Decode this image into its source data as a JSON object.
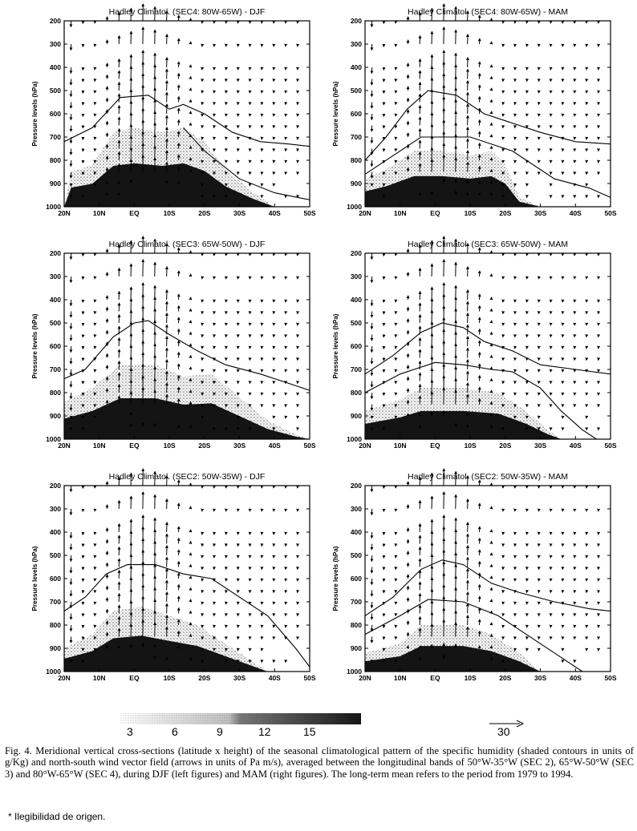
{
  "chart_data": [
    {
      "type": "vector-field",
      "title": "Hadley Climatol. (SEC4: 80W-65W) - DJF",
      "ylabel": "Pressure levels (hPa)",
      "x_ticks": [
        "20N",
        "10N",
        "EQ",
        "10S",
        "20S",
        "30S",
        "40S",
        "50S"
      ],
      "y_ticks": [
        200,
        300,
        400,
        500,
        600,
        700,
        800,
        900,
        1000
      ],
      "xlim": [
        20,
        -50
      ],
      "ylim": [
        1000,
        200
      ],
      "humidity_top": [
        {
          "lat": 20,
          "p": 1000
        },
        {
          "lat": 18,
          "p": 850
        },
        {
          "lat": 12,
          "p": 820
        },
        {
          "lat": 6,
          "p": 680
        },
        {
          "lat": 0,
          "p": 660
        },
        {
          "lat": -8,
          "p": 680
        },
        {
          "lat": -14,
          "p": 660
        },
        {
          "lat": -20,
          "p": 720
        },
        {
          "lat": -26,
          "p": 840
        },
        {
          "lat": -34,
          "p": 940
        },
        {
          "lat": -40,
          "p": 1000
        }
      ],
      "contour_lines": [
        [
          {
            "lat": 20,
            "p": 720
          },
          {
            "lat": 12,
            "p": 660
          },
          {
            "lat": 4,
            "p": 530
          },
          {
            "lat": -4,
            "p": 520
          },
          {
            "lat": -10,
            "p": 580
          },
          {
            "lat": -14,
            "p": 560
          },
          {
            "lat": -20,
            "p": 600
          },
          {
            "lat": -28,
            "p": 680
          },
          {
            "lat": -36,
            "p": 720
          },
          {
            "lat": -44,
            "p": 730
          },
          {
            "lat": -50,
            "p": 740
          }
        ],
        [
          {
            "lat": -14,
            "p": 660
          },
          {
            "lat": -20,
            "p": 760
          },
          {
            "lat": -30,
            "p": 880
          },
          {
            "lat": -40,
            "p": 940
          },
          {
            "lat": -50,
            "p": 970
          }
        ]
      ]
    },
    {
      "type": "vector-field",
      "title": "Hadley Climatol. (SEC4: 80W-65W) - MAM",
      "ylabel": "Pressure levels (hPa)",
      "x_ticks": [
        "20N",
        "10N",
        "EQ",
        "10S",
        "20S",
        "30S",
        "40S",
        "50S"
      ],
      "y_ticks": [
        200,
        300,
        400,
        500,
        600,
        700,
        800,
        900,
        1000
      ],
      "xlim": [
        20,
        -50
      ],
      "ylim": [
        1000,
        200
      ],
      "humidity_top": [
        {
          "lat": 20,
          "p": 880
        },
        {
          "lat": 14,
          "p": 840
        },
        {
          "lat": 6,
          "p": 760
        },
        {
          "lat": -2,
          "p": 760
        },
        {
          "lat": -10,
          "p": 780
        },
        {
          "lat": -16,
          "p": 760
        },
        {
          "lat": -20,
          "p": 820
        },
        {
          "lat": -24,
          "p": 960
        },
        {
          "lat": -30,
          "p": 1000
        }
      ],
      "contour_lines": [
        [
          {
            "lat": 20,
            "p": 800
          },
          {
            "lat": 14,
            "p": 700
          },
          {
            "lat": 8,
            "p": 580
          },
          {
            "lat": 2,
            "p": 500
          },
          {
            "lat": -6,
            "p": 520
          },
          {
            "lat": -14,
            "p": 600
          },
          {
            "lat": -22,
            "p": 640
          },
          {
            "lat": -30,
            "p": 680
          },
          {
            "lat": -40,
            "p": 720
          },
          {
            "lat": -50,
            "p": 730
          }
        ],
        [
          {
            "lat": 20,
            "p": 860
          },
          {
            "lat": 12,
            "p": 780
          },
          {
            "lat": 4,
            "p": 700
          },
          {
            "lat": -10,
            "p": 700
          },
          {
            "lat": -22,
            "p": 760
          },
          {
            "lat": -34,
            "p": 880
          },
          {
            "lat": -44,
            "p": 920
          },
          {
            "lat": -50,
            "p": 960
          }
        ]
      ]
    },
    {
      "type": "vector-field",
      "title": "Hadley Climatol. (SEC3: 65W-50W) - DJF",
      "ylabel": "Pressure levels (hPa)",
      "x_ticks": [
        "20N",
        "10N",
        "EQ",
        "10S",
        "20S",
        "30S",
        "40S",
        "50S"
      ],
      "y_ticks": [
        200,
        300,
        400,
        500,
        600,
        700,
        800,
        900,
        1000
      ],
      "xlim": [
        20,
        -50
      ],
      "ylim": [
        1000,
        200
      ],
      "humidity_top": [
        {
          "lat": 20,
          "p": 840
        },
        {
          "lat": 12,
          "p": 780
        },
        {
          "lat": 4,
          "p": 680
        },
        {
          "lat": -6,
          "p": 680
        },
        {
          "lat": -14,
          "p": 730
        },
        {
          "lat": -22,
          "p": 720
        },
        {
          "lat": -30,
          "p": 820
        },
        {
          "lat": -38,
          "p": 920
        },
        {
          "lat": -46,
          "p": 980
        },
        {
          "lat": -50,
          "p": 1000
        }
      ],
      "contour_lines": [
        [
          {
            "lat": 20,
            "p": 740
          },
          {
            "lat": 14,
            "p": 700
          },
          {
            "lat": 6,
            "p": 560
          },
          {
            "lat": 0,
            "p": 500
          },
          {
            "lat": -4,
            "p": 490
          },
          {
            "lat": -10,
            "p": 550
          },
          {
            "lat": -18,
            "p": 620
          },
          {
            "lat": -26,
            "p": 680
          },
          {
            "lat": -36,
            "p": 720
          },
          {
            "lat": -44,
            "p": 760
          },
          {
            "lat": -50,
            "p": 790
          }
        ]
      ]
    },
    {
      "type": "vector-field",
      "title": "Hadley Climatol. (SEC3: 65W-50W) - MAM",
      "ylabel": "Pressure levels (hPa)",
      "x_ticks": [
        "20N",
        "10N",
        "EQ",
        "10S",
        "20S",
        "30S",
        "40S",
        "50S"
      ],
      "y_ticks": [
        200,
        300,
        400,
        500,
        600,
        700,
        800,
        900,
        1000
      ],
      "xlim": [
        20,
        -50
      ],
      "ylim": [
        1000,
        200
      ],
      "humidity_top": [
        {
          "lat": 20,
          "p": 880
        },
        {
          "lat": 10,
          "p": 830
        },
        {
          "lat": 4,
          "p": 780
        },
        {
          "lat": -8,
          "p": 780
        },
        {
          "lat": -18,
          "p": 800
        },
        {
          "lat": -26,
          "p": 880
        },
        {
          "lat": -32,
          "p": 960
        },
        {
          "lat": -36,
          "p": 1000
        }
      ],
      "contour_lines": [
        [
          {
            "lat": 20,
            "p": 720
          },
          {
            "lat": 12,
            "p": 640
          },
          {
            "lat": 4,
            "p": 540
          },
          {
            "lat": -2,
            "p": 500
          },
          {
            "lat": -8,
            "p": 520
          },
          {
            "lat": -14,
            "p": 580
          },
          {
            "lat": -22,
            "p": 620
          },
          {
            "lat": -30,
            "p": 680
          },
          {
            "lat": -40,
            "p": 700
          },
          {
            "lat": -50,
            "p": 720
          }
        ],
        [
          {
            "lat": 20,
            "p": 800
          },
          {
            "lat": 10,
            "p": 720
          },
          {
            "lat": 0,
            "p": 670
          },
          {
            "lat": -8,
            "p": 680
          },
          {
            "lat": -16,
            "p": 700
          },
          {
            "lat": -22,
            "p": 710
          },
          {
            "lat": -30,
            "p": 780
          },
          {
            "lat": -36,
            "p": 880
          },
          {
            "lat": -42,
            "p": 960
          },
          {
            "lat": -46,
            "p": 1000
          }
        ]
      ]
    },
    {
      "type": "vector-field",
      "title": "Hadley Climatol. (SEC2: 50W-35W) - DJF",
      "ylabel": "Pressure levels (hPa)",
      "x_ticks": [
        "20N",
        "10N",
        "EQ",
        "10S",
        "20S",
        "30S",
        "40S",
        "50S"
      ],
      "y_ticks": [
        200,
        300,
        400,
        500,
        600,
        700,
        800,
        900,
        1000
      ],
      "xlim": [
        20,
        -50
      ],
      "ylim": [
        1000,
        200
      ],
      "humidity_top": [
        {
          "lat": 20,
          "p": 900
        },
        {
          "lat": 12,
          "p": 840
        },
        {
          "lat": 6,
          "p": 740
        },
        {
          "lat": -2,
          "p": 720
        },
        {
          "lat": -10,
          "p": 760
        },
        {
          "lat": -18,
          "p": 800
        },
        {
          "lat": -26,
          "p": 880
        },
        {
          "lat": -34,
          "p": 960
        },
        {
          "lat": -38,
          "p": 1000
        }
      ],
      "contour_lines": [
        [
          {
            "lat": 20,
            "p": 740
          },
          {
            "lat": 14,
            "p": 680
          },
          {
            "lat": 8,
            "p": 580
          },
          {
            "lat": 2,
            "p": 540
          },
          {
            "lat": -6,
            "p": 540
          },
          {
            "lat": -14,
            "p": 580
          },
          {
            "lat": -22,
            "p": 600
          },
          {
            "lat": -30,
            "p": 680
          },
          {
            "lat": -38,
            "p": 760
          },
          {
            "lat": -46,
            "p": 900
          },
          {
            "lat": -50,
            "p": 980
          }
        ]
      ]
    },
    {
      "type": "vector-field",
      "title": "Hadley Climatol. (SEC2: 50W-35W) - MAM",
      "ylabel": "Pressure levels (hPa)",
      "x_ticks": [
        "20N",
        "10N",
        "EQ",
        "10S",
        "20S",
        "30S",
        "40S",
        "50S"
      ],
      "y_ticks": [
        200,
        300,
        400,
        500,
        600,
        700,
        800,
        900,
        1000
      ],
      "xlim": [
        20,
        -50
      ],
      "ylim": [
        1000,
        200
      ],
      "humidity_top": [
        {
          "lat": 20,
          "p": 920
        },
        {
          "lat": 10,
          "p": 880
        },
        {
          "lat": 4,
          "p": 800
        },
        {
          "lat": -8,
          "p": 800
        },
        {
          "lat": -16,
          "p": 840
        },
        {
          "lat": -24,
          "p": 920
        },
        {
          "lat": -30,
          "p": 1000
        }
      ],
      "contour_lines": [
        [
          {
            "lat": 20,
            "p": 760
          },
          {
            "lat": 12,
            "p": 680
          },
          {
            "lat": 4,
            "p": 560
          },
          {
            "lat": -2,
            "p": 520
          },
          {
            "lat": -8,
            "p": 540
          },
          {
            "lat": -16,
            "p": 620
          },
          {
            "lat": -24,
            "p": 660
          },
          {
            "lat": -34,
            "p": 700
          },
          {
            "lat": -44,
            "p": 730
          },
          {
            "lat": -50,
            "p": 740
          }
        ],
        [
          {
            "lat": 20,
            "p": 840
          },
          {
            "lat": 10,
            "p": 760
          },
          {
            "lat": 2,
            "p": 690
          },
          {
            "lat": -8,
            "p": 700
          },
          {
            "lat": -18,
            "p": 760
          },
          {
            "lat": -28,
            "p": 860
          },
          {
            "lat": -38,
            "p": 960
          },
          {
            "lat": -42,
            "p": 1000
          }
        ]
      ]
    }
  ],
  "legend": {
    "ticks": [
      "3",
      "6",
      "9",
      "12",
      "15"
    ],
    "reference_vector": "30"
  },
  "caption": "Fig. 4. Meridional vertical cross-sections (latitude x height) of the seasonal climatological pattern of the specific humidity (shaded contours in units of g/Kg) and north-south wind vector field (arrows in units of Pa m/s), averaged between the longitudinal bands of 50°W-35°W (SEC 2), 65°W-50°W (SEC 3) and 80°W-65°W (SEC 4), during DJF (left figures) and MAM (right figures). The long-term mean refers to the period from 1979 to 1994.",
  "note": "* Ilegibilidad de origen.",
  "colors": {
    "ink": "#000000",
    "paper": "#ffffff",
    "shade_dark": "#141414",
    "shade_mid": "#8a8a8a",
    "shade_light": "#d4d4d4"
  }
}
